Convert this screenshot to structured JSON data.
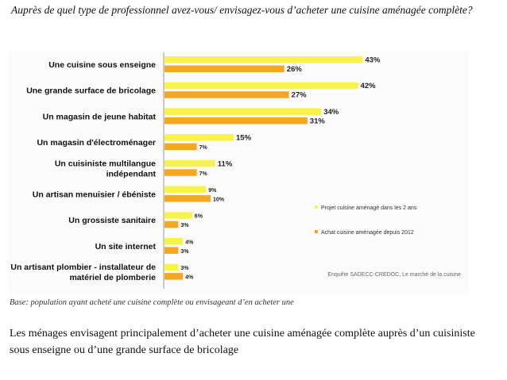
{
  "header": {
    "question": "Auprès de quel type de professionnel avez-vous/ envisagez-vous d’acheter une cuisine aménagée complète?"
  },
  "footer": {
    "base": "Base: population ayant acheté une cuisine complète ou envisageant d’en acheter une",
    "conclusion": "Les ménages envisagent principalement d’acheter une cuisine aménagée complète auprès d’un cuisiniste sous enseigne ou d’une grande surface de bricolage"
  },
  "chart_data": {
    "type": "bar",
    "orientation": "horizontal",
    "categories": [
      [
        "Une cuisine sous enseigne"
      ],
      [
        "Une grande surface de bricolage"
      ],
      [
        "Un magasin de jeune habitat"
      ],
      [
        "Un magasin d'électroménager"
      ],
      [
        "Un cuisiniste multilangue",
        "indépendant"
      ],
      [
        "Un artisan menuisier / ébéniste"
      ],
      [
        "Un grossiste sanitaire"
      ],
      [
        "Un site internet"
      ],
      [
        "Un artisant plombier - installateur de",
        "matériel de plomberie"
      ]
    ],
    "series": [
      {
        "name": "Projet cuisine aménagé dans les 2 ans",
        "color": "#f8f34a",
        "values": [
          43,
          42,
          34,
          15,
          11,
          9,
          6,
          4,
          3
        ]
      },
      {
        "name": "Achat cuisine aménagée depuis 2012",
        "color": "#f5a623",
        "values": [
          26,
          27,
          31,
          7,
          7,
          10,
          3,
          3,
          4
        ]
      }
    ],
    "value_suffix": "%",
    "legend_position": "right",
    "source": "Enquête SADECC-CREDOC, Le marché de la cuisine",
    "xlim": [
      0,
      50
    ],
    "grid": false
  }
}
